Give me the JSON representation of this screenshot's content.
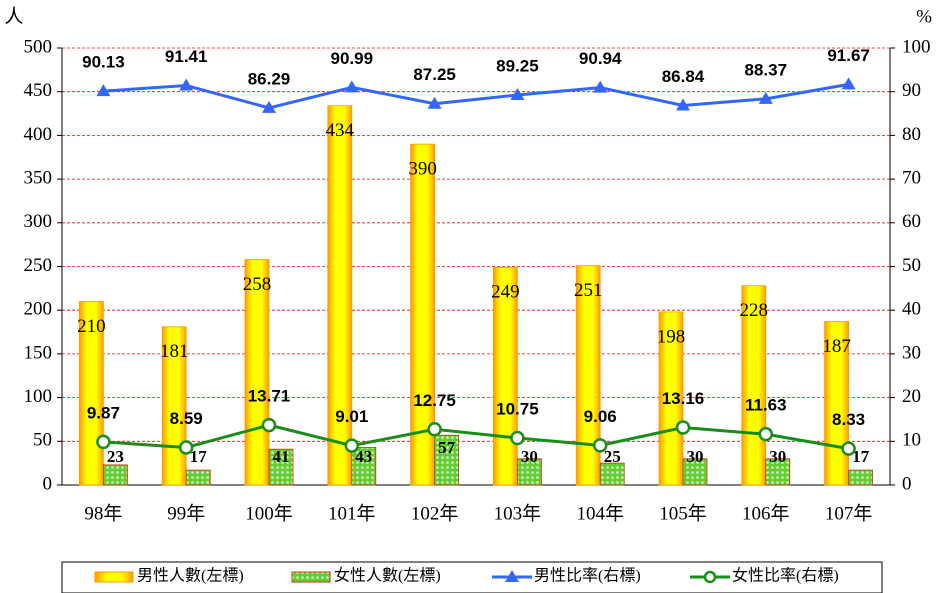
{
  "chart_data": {
    "type": "combo",
    "y_label": "人",
    "y2_label": "%",
    "categories": [
      "98年",
      "99年",
      "100年",
      "101年",
      "102年",
      "103年",
      "104年",
      "105年",
      "106年",
      "107年"
    ],
    "series": [
      {
        "name": "男性人數(左標)",
        "type": "bar",
        "color": "#ffff00",
        "values": [
          210,
          181,
          258,
          434,
          390,
          249,
          251,
          198,
          228,
          187
        ]
      },
      {
        "name": "女性人數(左標)",
        "type": "bar",
        "color": "#66cc33",
        "values": [
          23,
          17,
          41,
          43,
          57,
          30,
          25,
          30,
          30,
          17
        ]
      },
      {
        "name": "男性比率(右標)",
        "type": "line",
        "axis": "y2",
        "color": "#3366ff",
        "marker": "triangle",
        "values": [
          90.13,
          91.41,
          86.29,
          90.99,
          87.25,
          89.25,
          90.94,
          86.84,
          88.37,
          91.67
        ]
      },
      {
        "name": "女性比率(右標)",
        "type": "line",
        "axis": "y2",
        "color": "#1a8c1a",
        "marker": "circle",
        "values": [
          9.87,
          8.59,
          13.71,
          9.01,
          12.75,
          10.75,
          9.06,
          13.16,
          11.63,
          8.33
        ]
      }
    ],
    "ylim": [
      0,
      500
    ],
    "yticks": [
      0,
      50,
      100,
      150,
      200,
      250,
      300,
      350,
      400,
      450,
      500
    ],
    "y2lim": [
      0,
      100
    ],
    "y2ticks": [
      0,
      10,
      20,
      30,
      40,
      50,
      60,
      70,
      80,
      90,
      100
    ],
    "grid": true,
    "legend": "bottom"
  }
}
